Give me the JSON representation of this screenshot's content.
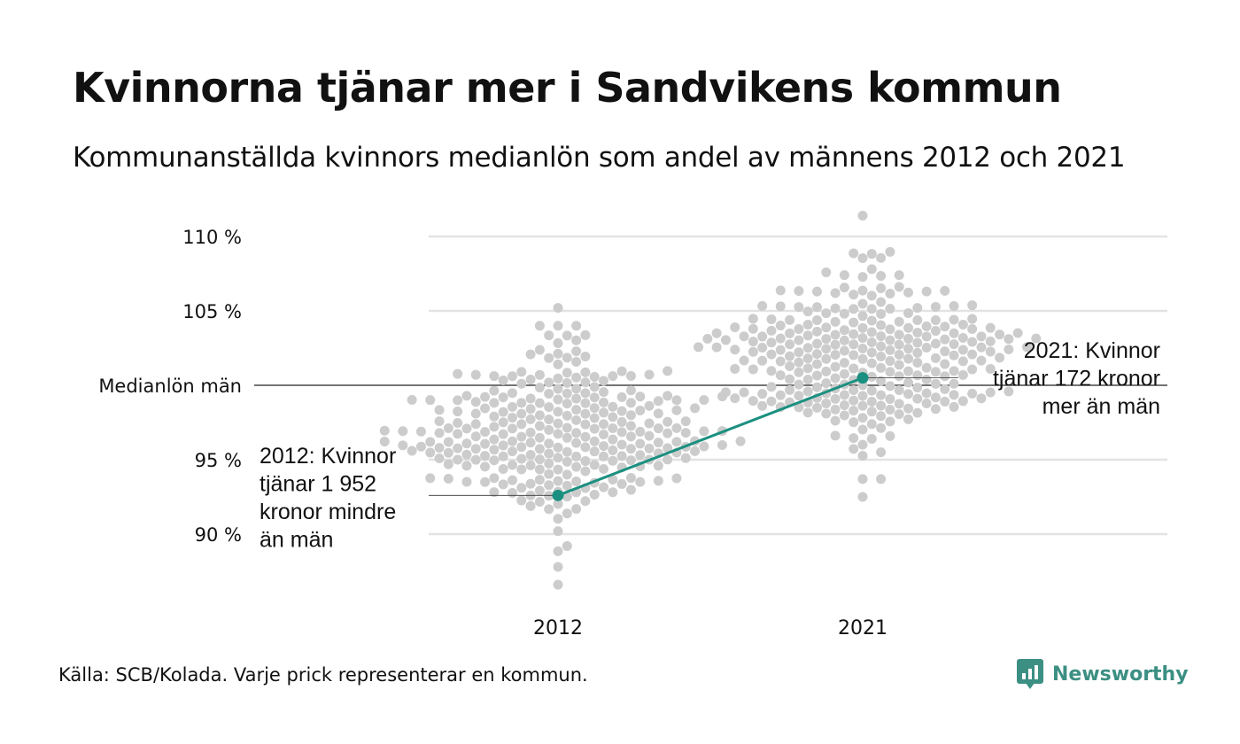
{
  "title": "Kvinnorna tjänar mer i Sandvikens kommun",
  "subtitle": "Kommunanställda kvinnors medianlön som andel av männens 2012 och 2021",
  "source": "Källa: SCB/Kolada. Varje prick representerar en kommun.",
  "logo": {
    "name": "Newsworthy",
    "icon": "newsworthy-logo-icon",
    "color": "#3c8f83"
  },
  "colors": {
    "dots": "#cccccc",
    "highlight": "#1b9080",
    "grid": "#e3e3e3",
    "reference": "#222222"
  },
  "chart_data": {
    "type": "scatter",
    "categories": [
      "2012",
      "2021"
    ],
    "y_axis": {
      "ticks": [
        {
          "value": 90,
          "label": "90 %"
        },
        {
          "value": 95,
          "label": "95 %"
        },
        {
          "value": 100,
          "label": "Medianlön män"
        },
        {
          "value": 105,
          "label": "105 %"
        },
        {
          "value": 110,
          "label": "110 %"
        }
      ],
      "range": [
        86,
        111.5
      ]
    },
    "grid": true,
    "reference_line": {
      "value": 100,
      "label": "Medianlön män"
    },
    "distributions": [
      {
        "category": "2012",
        "approx_points": 290,
        "median": 97,
        "spread": 2.9,
        "min": 86.6,
        "max": 105.2
      },
      {
        "category": "2021",
        "approx_points": 290,
        "median": 101.5,
        "spread": 2.8,
        "min": 92.5,
        "max": 111.4
      }
    ],
    "highlight": {
      "name": "Sandvikens kommun",
      "values": [
        {
          "category": "2012",
          "value": 92.6
        },
        {
          "category": "2021",
          "value": 100.5
        }
      ]
    },
    "annotations": [
      {
        "category": "2012",
        "lines": [
          "2012: Kvinnor",
          "tjänar 1 952",
          "kronor mindre",
          "än män"
        ]
      },
      {
        "category": "2021",
        "lines": [
          "2021: Kvinnor",
          "tjänar 172 kronor",
          "mer än män"
        ]
      }
    ]
  }
}
